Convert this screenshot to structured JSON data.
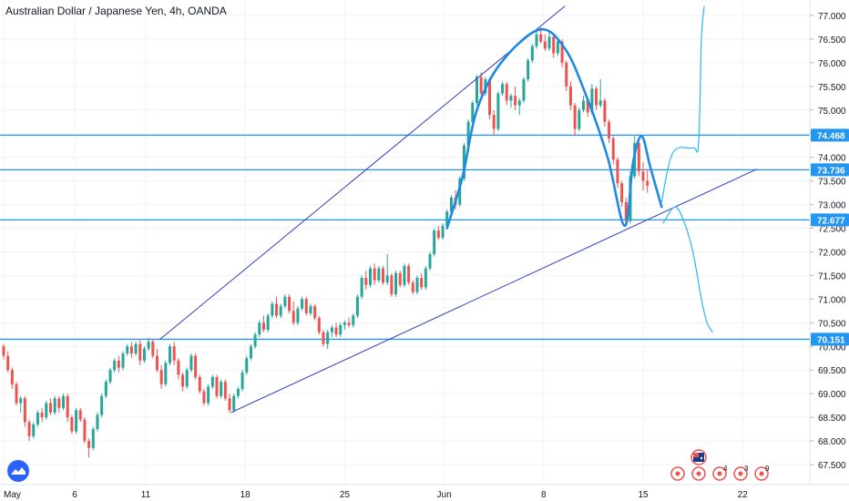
{
  "header": {
    "title": "Australian Dollar / Japanese Yen, 4h, OANDA"
  },
  "chart_data": {
    "type": "candlestick",
    "title": "Australian Dollar / Japanese Yen, 4h, OANDA",
    "ylim": [
      67.3,
      77.2
    ],
    "y_ticks": [
      "77.000",
      "76.500",
      "76.000",
      "75.500",
      "75.000",
      "74.500",
      "74.000",
      "73.500",
      "73.000",
      "72.500",
      "72.000",
      "71.500",
      "71.000",
      "70.500",
      "70.000",
      "69.500",
      "69.000",
      "68.500",
      "68.000",
      "67.500"
    ],
    "x_ticks": [
      {
        "label": "May",
        "d": 0
      },
      {
        "label": "6",
        "d": 5
      },
      {
        "label": "11",
        "d": 10
      },
      {
        "label": "18",
        "d": 17
      },
      {
        "label": "25",
        "d": 24
      },
      {
        "label": "Jun",
        "d": 31
      },
      {
        "label": "8",
        "d": 38
      },
      {
        "label": "15",
        "d": 45
      },
      {
        "label": "22",
        "d": 52
      }
    ],
    "xlim": [
      0,
      56.5
    ],
    "colors": {
      "up": "#26a69a",
      "down": "#ef5350",
      "level": "#2196f3",
      "trend": "#2f3fbd",
      "pattern": "#1e88e5",
      "projection": "#29b6f6",
      "grid": "#f0f3fa",
      "axis_text": "#131722"
    },
    "price_labels": [
      {
        "value": 74.468,
        "label": "74.468"
      },
      {
        "value": 73.736,
        "label": "73.736"
      },
      {
        "value": 72.677,
        "label": "72.677"
      },
      {
        "value": 70.151,
        "label": "70.151"
      }
    ],
    "horizontal_levels": [
      74.468,
      73.736,
      72.677,
      70.151
    ],
    "trendlines": [
      {
        "name": "upper-channel",
        "points": [
          [
            11.0,
            70.15
          ],
          [
            39.5,
            77.2
          ]
        ]
      },
      {
        "name": "lower-trendline",
        "points": [
          [
            16.0,
            68.6
          ],
          [
            53.0,
            73.75
          ]
        ]
      }
    ],
    "pattern_curve": [
      [
        31.2,
        72.5
      ],
      [
        32.3,
        73.6
      ],
      [
        33.3,
        75.0
      ],
      [
        35.0,
        76.0
      ],
      [
        37.7,
        76.7
      ],
      [
        39.5,
        76.3
      ],
      [
        41.0,
        75.3
      ],
      [
        42.5,
        74.0
      ],
      [
        43.7,
        72.55
      ],
      [
        44.3,
        73.9
      ],
      [
        44.9,
        74.45
      ],
      [
        45.5,
        73.8
      ],
      [
        46.3,
        72.95
      ]
    ],
    "projection_up": [
      [
        46.3,
        73.05
      ],
      [
        47.1,
        74.1
      ],
      [
        48.5,
        74.2
      ],
      [
        48.9,
        74.3
      ],
      [
        49.1,
        76.5
      ],
      [
        49.3,
        77.2
      ]
    ],
    "projection_down": [
      [
        46.4,
        72.6
      ],
      [
        47.2,
        72.95
      ],
      [
        47.8,
        72.7
      ],
      [
        48.5,
        72.0
      ],
      [
        49.1,
        71.0
      ],
      [
        49.5,
        70.5
      ],
      [
        49.9,
        70.3
      ]
    ],
    "candles": [
      [
        0.0,
        70.0,
        70.05,
        69.72,
        69.8
      ],
      [
        0.3,
        69.8,
        69.9,
        69.45,
        69.5
      ],
      [
        0.6,
        69.5,
        69.55,
        69.1,
        69.2
      ],
      [
        0.9,
        69.2,
        69.25,
        68.75,
        68.8
      ],
      [
        1.2,
        68.8,
        68.95,
        68.6,
        68.9
      ],
      [
        1.5,
        68.9,
        68.95,
        68.3,
        68.4
      ],
      [
        1.8,
        68.4,
        68.45,
        68.0,
        68.1
      ],
      [
        2.1,
        68.1,
        68.4,
        68.05,
        68.35
      ],
      [
        2.4,
        68.35,
        68.65,
        68.3,
        68.6
      ],
      [
        2.7,
        68.6,
        68.7,
        68.4,
        68.5
      ],
      [
        3.0,
        68.5,
        68.85,
        68.45,
        68.8
      ],
      [
        3.3,
        68.8,
        68.9,
        68.55,
        68.6
      ],
      [
        3.6,
        68.6,
        68.95,
        68.55,
        68.9
      ],
      [
        3.9,
        68.9,
        68.95,
        68.6,
        68.7
      ],
      [
        4.2,
        68.7,
        69.0,
        68.65,
        68.95
      ],
      [
        4.5,
        68.95,
        69.0,
        68.4,
        68.5
      ],
      [
        4.8,
        68.5,
        68.55,
        68.15,
        68.2
      ],
      [
        5.1,
        68.2,
        68.7,
        68.15,
        68.65
      ],
      [
        5.4,
        68.65,
        68.7,
        68.4,
        68.45
      ],
      [
        5.7,
        68.45,
        68.5,
        67.95,
        68.0
      ],
      [
        6.0,
        68.0,
        68.05,
        67.65,
        67.85
      ],
      [
        6.3,
        67.85,
        68.3,
        67.8,
        68.25
      ],
      [
        6.6,
        68.25,
        68.6,
        68.2,
        68.55
      ],
      [
        6.9,
        68.55,
        69.0,
        68.5,
        68.95
      ],
      [
        7.2,
        68.95,
        69.3,
        68.9,
        69.25
      ],
      [
        7.5,
        69.25,
        69.55,
        69.2,
        69.5
      ],
      [
        7.8,
        69.5,
        69.75,
        69.45,
        69.7
      ],
      [
        8.1,
        69.7,
        69.8,
        69.45,
        69.55
      ],
      [
        8.4,
        69.55,
        69.9,
        69.5,
        69.85
      ],
      [
        8.7,
        69.85,
        70.05,
        69.8,
        70.0
      ],
      [
        9.0,
        70.0,
        70.1,
        69.75,
        69.85
      ],
      [
        9.3,
        69.85,
        70.1,
        69.8,
        70.05
      ],
      [
        9.6,
        70.05,
        70.15,
        69.6,
        69.7
      ],
      [
        9.9,
        69.7,
        70.0,
        69.65,
        69.95
      ],
      [
        10.2,
        69.95,
        70.18,
        69.9,
        70.1
      ],
      [
        10.5,
        70.1,
        70.15,
        69.75,
        69.8
      ],
      [
        10.8,
        69.8,
        69.95,
        69.45,
        69.5
      ],
      [
        11.1,
        69.5,
        69.6,
        69.1,
        69.2
      ],
      [
        11.4,
        69.2,
        69.7,
        69.15,
        69.65
      ],
      [
        11.7,
        69.65,
        70.05,
        69.6,
        70.0
      ],
      [
        12.0,
        70.0,
        70.1,
        69.6,
        69.7
      ],
      [
        12.3,
        69.7,
        69.75,
        69.3,
        69.4
      ],
      [
        12.6,
        69.4,
        69.45,
        69.05,
        69.15
      ],
      [
        12.9,
        69.15,
        69.55,
        69.1,
        69.5
      ],
      [
        13.2,
        69.5,
        69.85,
        69.45,
        69.8
      ],
      [
        13.5,
        69.8,
        69.85,
        69.3,
        69.35
      ],
      [
        13.8,
        69.35,
        69.4,
        69.0,
        69.05
      ],
      [
        14.1,
        69.05,
        69.1,
        68.75,
        68.8
      ],
      [
        14.4,
        68.8,
        69.2,
        68.75,
        69.15
      ],
      [
        14.7,
        69.15,
        69.4,
        69.1,
        69.35
      ],
      [
        15.0,
        69.35,
        69.4,
        68.9,
        68.95
      ],
      [
        15.3,
        68.95,
        69.3,
        68.9,
        69.25
      ],
      [
        15.6,
        69.25,
        69.3,
        68.85,
        68.9
      ],
      [
        15.9,
        68.9,
        69.0,
        68.6,
        68.65
      ],
      [
        16.2,
        68.65,
        69.0,
        68.6,
        68.95
      ],
      [
        16.5,
        68.95,
        69.15,
        68.9,
        69.1
      ],
      [
        16.8,
        69.1,
        69.5,
        69.05,
        69.45
      ],
      [
        17.1,
        69.45,
        69.8,
        69.4,
        69.75
      ],
      [
        17.4,
        69.75,
        70.05,
        69.7,
        70.0
      ],
      [
        17.7,
        70.0,
        70.3,
        69.95,
        70.25
      ],
      [
        18.0,
        70.25,
        70.55,
        70.2,
        70.5
      ],
      [
        18.3,
        70.5,
        70.65,
        70.3,
        70.35
      ],
      [
        18.6,
        70.35,
        70.7,
        70.3,
        70.65
      ],
      [
        18.9,
        70.65,
        70.95,
        70.6,
        70.9
      ],
      [
        19.2,
        70.9,
        71.05,
        70.6,
        70.65
      ],
      [
        19.5,
        70.65,
        70.9,
        70.6,
        70.85
      ],
      [
        19.8,
        70.85,
        71.1,
        70.8,
        71.05
      ],
      [
        20.1,
        71.05,
        71.1,
        70.7,
        70.75
      ],
      [
        20.4,
        70.75,
        70.95,
        70.45,
        70.5
      ],
      [
        20.7,
        70.5,
        70.85,
        70.45,
        70.8
      ],
      [
        21.0,
        70.8,
        71.05,
        70.75,
        71.0
      ],
      [
        21.3,
        71.0,
        71.05,
        70.65,
        70.7
      ],
      [
        21.6,
        70.7,
        70.9,
        70.65,
        70.85
      ],
      [
        21.9,
        70.85,
        70.9,
        70.55,
        70.6
      ],
      [
        22.2,
        70.6,
        70.65,
        70.25,
        70.3
      ],
      [
        22.5,
        70.3,
        70.35,
        70.0,
        70.05
      ],
      [
        22.8,
        70.05,
        70.35,
        69.95,
        70.3
      ],
      [
        23.1,
        70.3,
        70.45,
        70.2,
        70.4
      ],
      [
        23.4,
        70.4,
        70.5,
        70.2,
        70.25
      ],
      [
        23.7,
        70.25,
        70.5,
        70.2,
        70.45
      ],
      [
        24.0,
        70.45,
        70.55,
        70.35,
        70.5
      ],
      [
        24.3,
        70.5,
        70.6,
        70.4,
        70.45
      ],
      [
        24.6,
        70.45,
        70.7,
        70.4,
        70.65
      ],
      [
        24.9,
        70.65,
        71.1,
        70.6,
        71.05
      ],
      [
        25.2,
        71.05,
        71.5,
        71.0,
        71.45
      ],
      [
        25.5,
        71.45,
        71.6,
        71.2,
        71.3
      ],
      [
        25.8,
        71.3,
        71.7,
        71.25,
        71.65
      ],
      [
        26.1,
        71.65,
        71.75,
        71.3,
        71.4
      ],
      [
        26.4,
        71.4,
        71.7,
        71.35,
        71.65
      ],
      [
        26.7,
        71.65,
        71.7,
        71.3,
        71.35
      ],
      [
        27.0,
        71.35,
        71.95,
        71.3,
        71.5
      ],
      [
        27.3,
        71.5,
        71.55,
        71.05,
        71.1
      ],
      [
        27.6,
        71.1,
        71.6,
        71.05,
        71.55
      ],
      [
        27.9,
        71.55,
        71.6,
        71.25,
        71.3
      ],
      [
        28.2,
        71.3,
        71.75,
        71.25,
        71.7
      ],
      [
        28.5,
        71.7,
        71.75,
        71.3,
        71.35
      ],
      [
        28.8,
        71.35,
        71.4,
        71.1,
        71.15
      ],
      [
        29.1,
        71.15,
        71.5,
        71.1,
        71.45
      ],
      [
        29.4,
        71.45,
        71.55,
        71.2,
        71.25
      ],
      [
        29.7,
        71.25,
        71.7,
        71.2,
        71.65
      ],
      [
        30.0,
        71.65,
        72.0,
        71.6,
        71.95
      ],
      [
        30.3,
        71.95,
        72.5,
        71.9,
        72.45
      ],
      [
        30.6,
        72.45,
        72.55,
        72.25,
        72.3
      ],
      [
        30.9,
        72.3,
        72.6,
        72.25,
        72.55
      ],
      [
        31.2,
        72.55,
        72.9,
        72.5,
        72.85
      ],
      [
        31.5,
        72.85,
        73.2,
        72.8,
        73.15
      ],
      [
        31.8,
        73.15,
        73.3,
        72.9,
        73.0
      ],
      [
        32.1,
        73.0,
        73.6,
        72.95,
        73.55
      ],
      [
        32.4,
        73.55,
        74.3,
        73.5,
        74.25
      ],
      [
        32.7,
        74.25,
        74.8,
        74.2,
        74.75
      ],
      [
        33.0,
        74.75,
        75.2,
        74.7,
        75.15
      ],
      [
        33.3,
        75.15,
        75.75,
        75.1,
        75.7
      ],
      [
        33.6,
        75.7,
        75.8,
        75.3,
        75.35
      ],
      [
        33.9,
        75.35,
        75.7,
        75.3,
        75.65
      ],
      [
        34.2,
        75.65,
        75.7,
        74.8,
        74.9
      ],
      [
        34.5,
        74.9,
        75.0,
        74.45,
        74.6
      ],
      [
        34.8,
        74.6,
        75.4,
        74.55,
        75.35
      ],
      [
        35.1,
        75.35,
        75.6,
        75.3,
        75.55
      ],
      [
        35.4,
        75.55,
        75.6,
        75.1,
        75.2
      ],
      [
        35.7,
        75.2,
        75.35,
        75.05,
        75.3
      ],
      [
        36.0,
        75.3,
        75.5,
        75.0,
        75.1
      ],
      [
        36.3,
        75.1,
        75.25,
        74.9,
        75.2
      ],
      [
        36.6,
        75.2,
        75.7,
        75.15,
        75.65
      ],
      [
        36.9,
        75.65,
        76.1,
        75.6,
        76.05
      ],
      [
        37.2,
        76.05,
        76.4,
        76.0,
        76.35
      ],
      [
        37.5,
        76.35,
        76.7,
        76.3,
        76.6
      ],
      [
        37.8,
        76.6,
        76.75,
        76.4,
        76.45
      ],
      [
        38.1,
        76.45,
        76.6,
        76.25,
        76.3
      ],
      [
        38.4,
        76.3,
        76.65,
        76.25,
        76.55
      ],
      [
        38.7,
        76.55,
        76.6,
        76.1,
        76.2
      ],
      [
        39.0,
        76.2,
        76.5,
        76.15,
        76.45
      ],
      [
        39.3,
        76.45,
        76.5,
        75.9,
        76.0
      ],
      [
        39.6,
        76.0,
        76.05,
        75.4,
        75.5
      ],
      [
        39.9,
        75.5,
        75.6,
        75.0,
        75.1
      ],
      [
        40.2,
        75.1,
        75.15,
        74.45,
        74.6
      ],
      [
        40.5,
        74.6,
        75.05,
        74.55,
        75.0
      ],
      [
        40.8,
        75.0,
        75.3,
        74.95,
        75.2
      ],
      [
        41.1,
        75.2,
        75.25,
        74.85,
        74.95
      ],
      [
        41.4,
        74.95,
        75.55,
        74.9,
        75.45
      ],
      [
        41.7,
        75.45,
        75.5,
        75.0,
        75.1
      ],
      [
        42.0,
        75.1,
        75.65,
        75.05,
        75.2
      ],
      [
        42.3,
        75.2,
        75.25,
        74.65,
        74.75
      ],
      [
        42.6,
        74.75,
        74.8,
        74.3,
        74.4
      ],
      [
        42.9,
        74.4,
        74.45,
        73.85,
        73.95
      ],
      [
        43.2,
        73.95,
        74.0,
        73.35,
        73.45
      ],
      [
        43.5,
        73.45,
        73.5,
        72.95,
        73.05
      ],
      [
        43.8,
        73.05,
        73.15,
        72.55,
        72.65
      ],
      [
        44.1,
        72.65,
        73.7,
        72.6,
        73.6
      ],
      [
        44.4,
        73.6,
        74.45,
        73.55,
        74.3
      ],
      [
        44.7,
        74.3,
        74.35,
        73.6,
        73.7
      ],
      [
        45.0,
        73.7,
        73.9,
        73.3,
        73.5
      ],
      [
        45.3,
        73.5,
        73.75,
        73.25,
        73.4
      ]
    ]
  }
}
